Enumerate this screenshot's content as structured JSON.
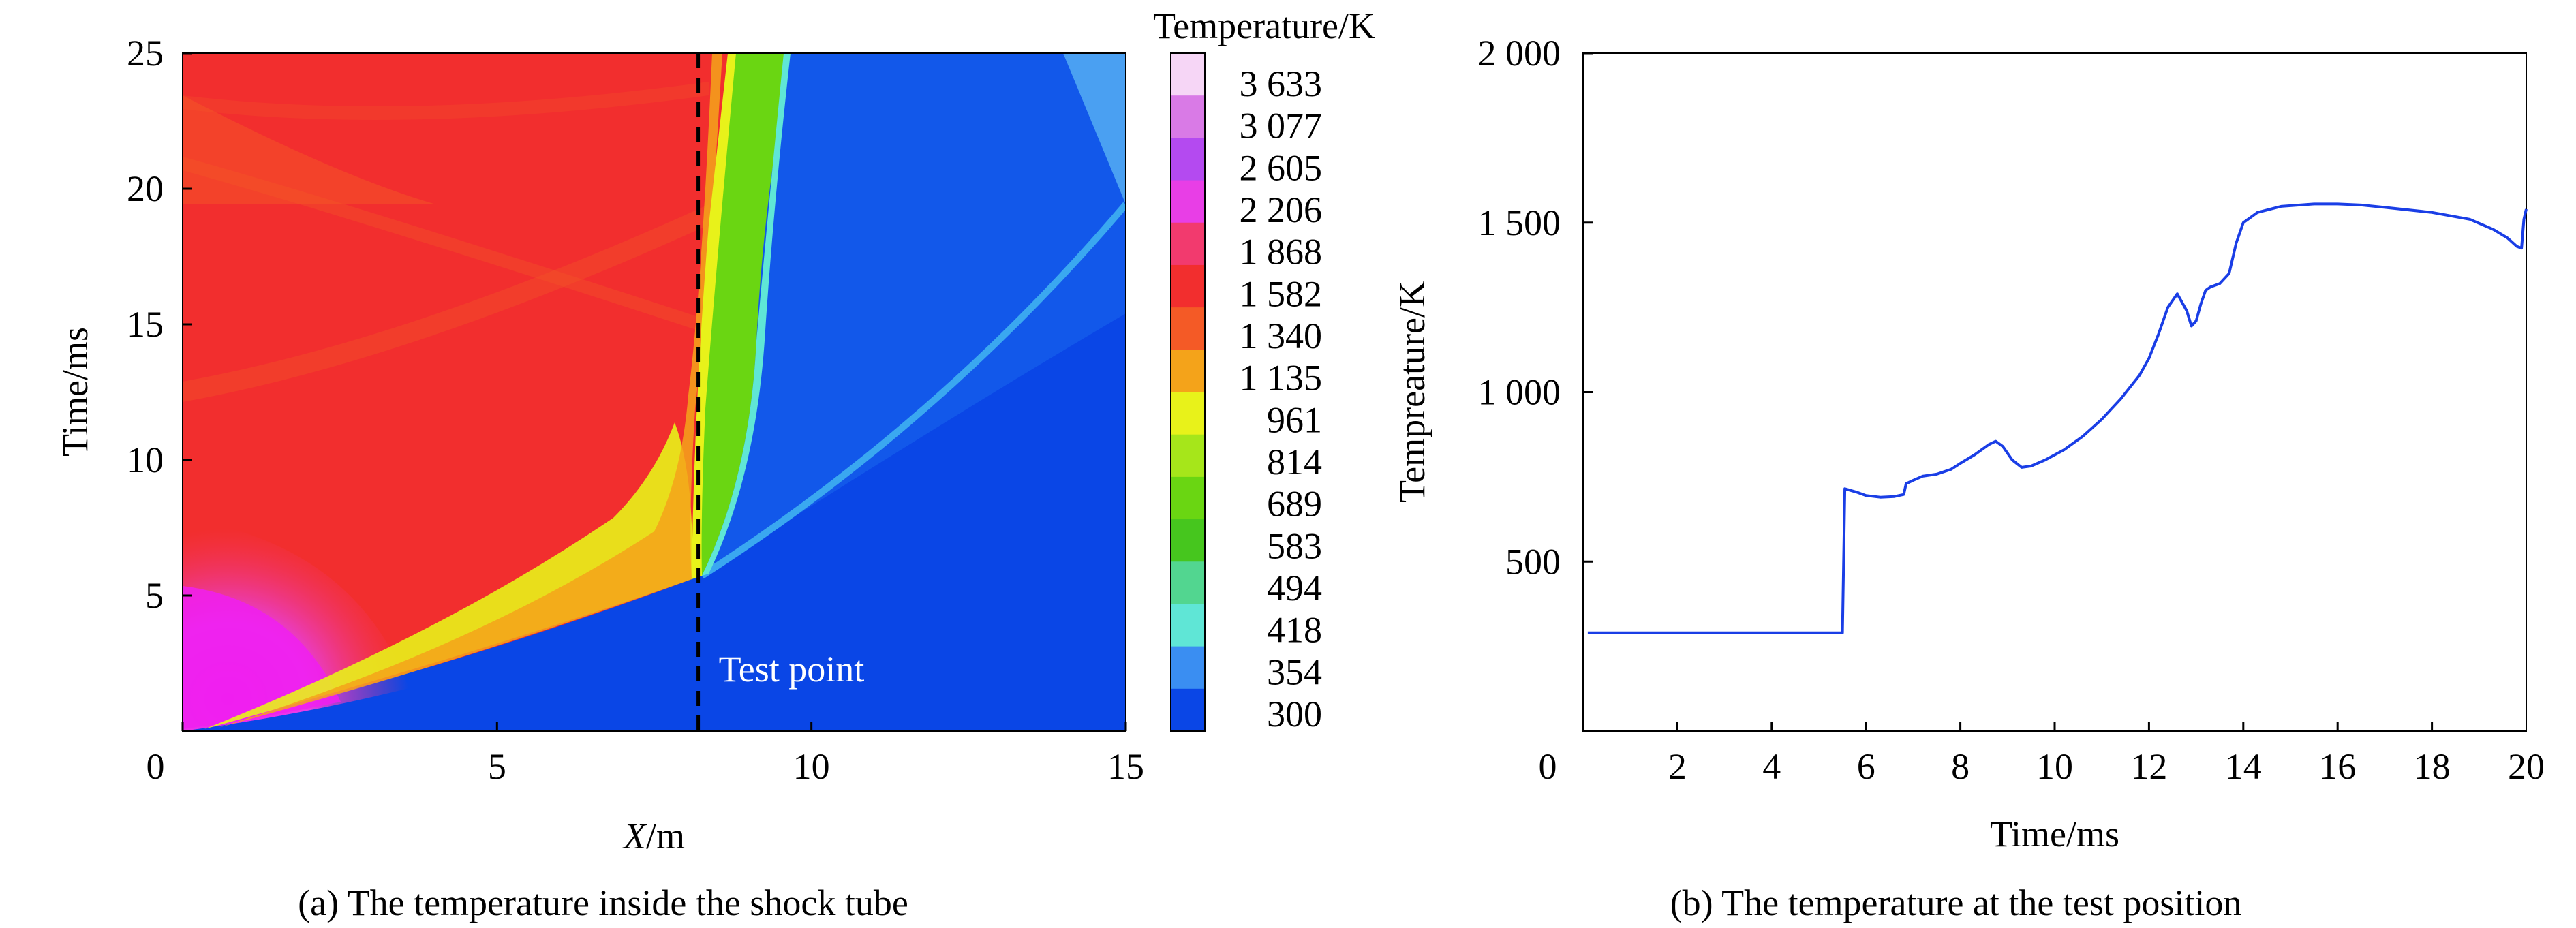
{
  "chart_data": [
    {
      "type": "heatmap",
      "caption": "(a) The temperature inside the shock tube",
      "xlabel_italic": "X",
      "xlabel_rest": "/m",
      "ylabel": "Time/ms",
      "xlim": [
        0,
        15
      ],
      "ylim": [
        0,
        25
      ],
      "x_ticks": [
        0,
        5,
        10,
        15
      ],
      "x_tick_labels": [
        "0",
        "5",
        "10",
        "15"
      ],
      "y_ticks": [
        5,
        10,
        15,
        20,
        25
      ],
      "y_tick_labels": [
        "5",
        "10",
        "15",
        "20",
        "25"
      ],
      "annotation": "Test point",
      "test_point_x": 8.2,
      "colorbar": {
        "title": "Temperature/K",
        "labels": [
          "3 633",
          "3 077",
          "2 605",
          "2 206",
          "1 868",
          "1 582",
          "1 340",
          "1 135",
          "961",
          "814",
          "689",
          "583",
          "494",
          "418",
          "354",
          "300"
        ],
        "colors": [
          "#f6d6f6",
          "#d97ae6",
          "#b44af0",
          "#e83ee6",
          "#f23a6e",
          "#f22e2e",
          "#f45a26",
          "#f4a31a",
          "#e8f21a",
          "#a6e61a",
          "#6ad612",
          "#46c61e",
          "#52d690",
          "#5fe6d6",
          "#3a8ef2",
          "#0a46e6"
        ]
      }
    },
    {
      "type": "line",
      "caption": "(b) The temperature at the test position",
      "xlabel": "Time/ms",
      "ylabel": "Tempreature/K",
      "xlim": [
        0,
        20
      ],
      "ylim": [
        0,
        2000
      ],
      "x_ticks": [
        0,
        2,
        4,
        6,
        8,
        10,
        12,
        14,
        16,
        18,
        20
      ],
      "x_tick_labels": [
        "0",
        "2",
        "4",
        "6",
        "8",
        "10",
        "12",
        "14",
        "16",
        "18",
        "20"
      ],
      "y_ticks": [
        500,
        1000,
        1500,
        2000
      ],
      "y_tick_labels": [
        "500",
        "1 000",
        "1 500",
        "2 000"
      ],
      "line_color": "#1a3ee6",
      "series": [
        {
          "x": [
            0.1,
            1,
            2,
            3,
            4,
            5,
            5.5,
            5.55,
            5.8,
            6.0,
            6.3,
            6.6,
            6.8,
            6.85,
            7.0,
            7.2,
            7.5,
            7.8,
            8.0,
            8.3,
            8.6,
            8.75,
            8.9,
            9.1,
            9.3,
            9.5,
            9.8,
            10.2,
            10.6,
            11.0,
            11.4,
            11.8,
            12.0,
            12.2,
            12.4,
            12.6,
            12.8,
            12.9,
            13.0,
            13.1,
            13.2,
            13.3,
            13.5,
            13.7,
            13.85,
            14.0,
            14.3,
            14.8,
            15.5,
            16.0,
            16.5,
            17.0,
            18.0,
            18.8,
            19.3,
            19.6,
            19.8,
            19.9,
            19.95,
            20.0
          ],
          "y": [
            290,
            290,
            290,
            290,
            290,
            290,
            290,
            715,
            705,
            695,
            690,
            692,
            698,
            730,
            740,
            752,
            758,
            772,
            790,
            815,
            845,
            855,
            840,
            800,
            778,
            782,
            800,
            830,
            870,
            920,
            980,
            1050,
            1100,
            1170,
            1250,
            1290,
            1240,
            1195,
            1210,
            1260,
            1300,
            1310,
            1320,
            1350,
            1440,
            1500,
            1530,
            1548,
            1555,
            1555,
            1552,
            1545,
            1530,
            1510,
            1480,
            1455,
            1430,
            1425,
            1510,
            1540
          ]
        }
      ]
    }
  ]
}
